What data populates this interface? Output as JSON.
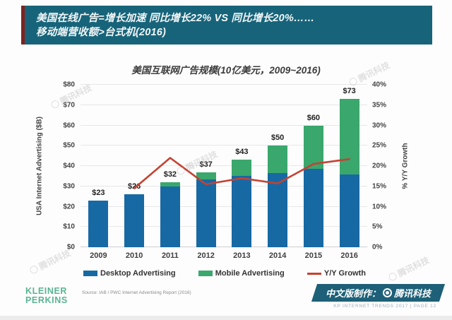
{
  "header": {
    "line1": "美国在线广告=增长加速 同比增长22% VS 同比增长20%……",
    "line2": "移动端营收额>台式机(2016)"
  },
  "chart_data": {
    "type": "bar",
    "subtype": "stacked-bars-with-line-overlay",
    "title": "美国互联网广告规模(10亿美元，2009~2016)",
    "categories": [
      "2009",
      "2010",
      "2011",
      "2012",
      "2013",
      "2014",
      "2015",
      "2016"
    ],
    "series": [
      {
        "name": "Desktop Advertising",
        "type": "bar",
        "axis": "left",
        "color": "#1769a4",
        "values": [
          23,
          26,
          30,
          33.5,
          35,
          36.5,
          38.5,
          36
        ]
      },
      {
        "name": "Mobile Advertising",
        "type": "bar",
        "axis": "left",
        "color": "#3aa76d",
        "values": [
          0,
          0,
          2,
          3.5,
          8,
          13.5,
          21.5,
          37
        ]
      },
      {
        "name": "Y/Y Growth",
        "type": "line",
        "axis": "right",
        "color": "#c44233",
        "values": [
          null,
          14.5,
          22,
          15.5,
          17,
          15.7,
          20.5,
          21.7
        ]
      }
    ],
    "bar_total_labels": [
      "$23",
      "$26",
      "$32",
      "$37",
      "$43",
      "$50",
      "$60",
      "$73"
    ],
    "left_axis": {
      "label": "USA Internet Advertising ($B)",
      "min": 0,
      "max": 80,
      "tick_step": 10,
      "ticks": [
        "$0",
        "$10",
        "$20",
        "$30",
        "$40",
        "$50",
        "$60",
        "$70",
        "$80"
      ]
    },
    "right_axis": {
      "label": "% Y/Y Growth",
      "min": 0,
      "max": 40,
      "tick_step": 5,
      "ticks": [
        "0%",
        "5%",
        "10%",
        "15%",
        "20%",
        "25%",
        "30%",
        "35%",
        "40%"
      ]
    },
    "grid": true,
    "legend_position": "bottom"
  },
  "footer": {
    "brand_line1": "KLEINER",
    "brand_line2": "PERKINS",
    "source": "Source: IAB / PWC Internet Advertising Report (2016)",
    "badge_prefix": "中文版制作：",
    "badge_brand": "腾讯科技",
    "page_info": "KP INTERNET TRENDS 2017  |  PAGE 12"
  },
  "watermark_text": "腾讯科技",
  "colors": {
    "header_bg": "#17647a",
    "header_accent": "#7e2420",
    "desktop_bar": "#1769a4",
    "mobile_bar": "#3aa76d",
    "growth_line": "#c44233",
    "brand_green": "#5bb492",
    "badge_bg": "#1d6078"
  }
}
